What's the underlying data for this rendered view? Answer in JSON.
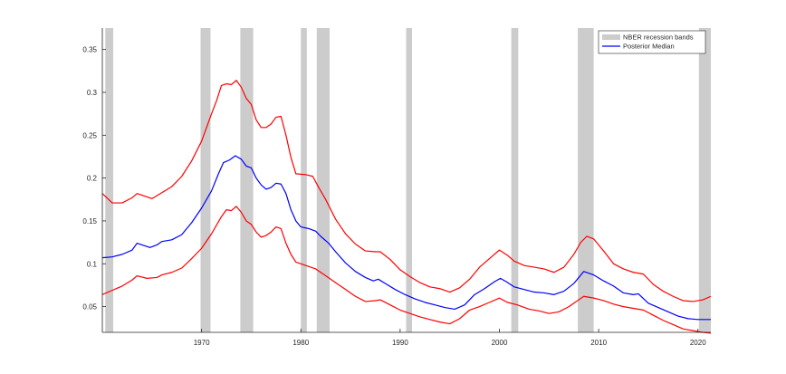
{
  "chart_data": {
    "type": "line",
    "title": "",
    "xlabel": "",
    "ylabel": "",
    "xlim": [
      1960,
      2021.3
    ],
    "ylim": [
      0.02,
      0.375
    ],
    "grid": false,
    "legend_placement": "top-right",
    "x_ticks": [
      1970,
      1980,
      1990,
      2000,
      2010,
      2020
    ],
    "x_tick_labels": [
      "1970",
      "1980",
      "1990",
      "2000",
      "2010",
      "2020"
    ],
    "y_ticks": [
      0.05,
      0.1,
      0.15,
      0.2,
      0.25,
      0.3,
      0.35
    ],
    "y_tick_labels": [
      "0.05",
      "0.1",
      "0.15",
      "0.2",
      "0.25",
      "0.3",
      "0.35"
    ],
    "recession_bands": [
      [
        1960.3,
        1961.1
      ],
      [
        1969.9,
        1970.9
      ],
      [
        1973.9,
        1975.2
      ],
      [
        1980.0,
        1980.6
      ],
      [
        1981.6,
        1982.9
      ],
      [
        1990.6,
        1991.2
      ],
      [
        2001.2,
        2001.9
      ],
      [
        2007.9,
        2009.5
      ],
      [
        2020.1,
        2021.3
      ]
    ],
    "legend": [
      {
        "label": "NBER recession bands",
        "kind": "band",
        "color": "#cccccc"
      },
      {
        "label": "Posterior Median",
        "kind": "line",
        "color": "#0000ff"
      }
    ],
    "series": [
      {
        "name": "Posterior Median",
        "color": "#0000ff",
        "points": [
          [
            1960,
            0.107
          ],
          [
            1961,
            0.108
          ],
          [
            1962,
            0.111
          ],
          [
            1963,
            0.116
          ],
          [
            1963.5,
            0.124
          ],
          [
            1964,
            0.122
          ],
          [
            1964.8,
            0.119
          ],
          [
            1965.5,
            0.122
          ],
          [
            1966,
            0.126
          ],
          [
            1967,
            0.128
          ],
          [
            1968,
            0.134
          ],
          [
            1969,
            0.148
          ],
          [
            1970,
            0.165
          ],
          [
            1971,
            0.185
          ],
          [
            1971.7,
            0.205
          ],
          [
            1972.2,
            0.218
          ],
          [
            1972.8,
            0.221
          ],
          [
            1973.4,
            0.226
          ],
          [
            1974,
            0.222
          ],
          [
            1974.5,
            0.214
          ],
          [
            1975,
            0.212
          ],
          [
            1975.5,
            0.2
          ],
          [
            1976,
            0.192
          ],
          [
            1976.5,
            0.187
          ],
          [
            1977,
            0.189
          ],
          [
            1977.5,
            0.194
          ],
          [
            1978,
            0.193
          ],
          [
            1978.5,
            0.182
          ],
          [
            1979,
            0.163
          ],
          [
            1979.5,
            0.15
          ],
          [
            1980,
            0.143
          ],
          [
            1980.8,
            0.141
          ],
          [
            1981.5,
            0.138
          ],
          [
            1982,
            0.132
          ],
          [
            1982.8,
            0.124
          ],
          [
            1983.5,
            0.114
          ],
          [
            1984.5,
            0.101
          ],
          [
            1985.5,
            0.091
          ],
          [
            1986.5,
            0.084
          ],
          [
            1987.3,
            0.08
          ],
          [
            1987.8,
            0.082
          ],
          [
            1988.5,
            0.077
          ],
          [
            1989.5,
            0.07
          ],
          [
            1990.5,
            0.064
          ],
          [
            1991.5,
            0.059
          ],
          [
            1992.5,
            0.055
          ],
          [
            1993.5,
            0.052
          ],
          [
            1994.5,
            0.049
          ],
          [
            1995.5,
            0.047
          ],
          [
            1996.5,
            0.052
          ],
          [
            1997.5,
            0.064
          ],
          [
            1998.5,
            0.071
          ],
          [
            1999.5,
            0.079
          ],
          [
            2000.1,
            0.083
          ],
          [
            2000.7,
            0.079
          ],
          [
            2001.5,
            0.073
          ],
          [
            2002.5,
            0.07
          ],
          [
            2003.5,
            0.067
          ],
          [
            2004.5,
            0.066
          ],
          [
            2005.5,
            0.064
          ],
          [
            2006.5,
            0.068
          ],
          [
            2007.5,
            0.077
          ],
          [
            2008.5,
            0.091
          ],
          [
            2009.5,
            0.087
          ],
          [
            2010.5,
            0.08
          ],
          [
            2011.5,
            0.074
          ],
          [
            2012.5,
            0.066
          ],
          [
            2013.5,
            0.064
          ],
          [
            2014,
            0.065
          ],
          [
            2015,
            0.054
          ],
          [
            2016,
            0.049
          ],
          [
            2017,
            0.044
          ],
          [
            2018,
            0.039
          ],
          [
            2019,
            0.036
          ],
          [
            2020,
            0.035
          ],
          [
            2021.3,
            0.035
          ]
        ]
      },
      {
        "name": "",
        "color": "#ff0000",
        "points": [
          [
            1960,
            0.182
          ],
          [
            1961,
            0.171
          ],
          [
            1962,
            0.171
          ],
          [
            1963,
            0.177
          ],
          [
            1963.5,
            0.182
          ],
          [
            1964,
            0.18
          ],
          [
            1965,
            0.176
          ],
          [
            1966,
            0.183
          ],
          [
            1967,
            0.19
          ],
          [
            1968,
            0.202
          ],
          [
            1969,
            0.22
          ],
          [
            1970,
            0.243
          ],
          [
            1971,
            0.275
          ],
          [
            1971.5,
            0.29
          ],
          [
            1972,
            0.308
          ],
          [
            1972.5,
            0.31
          ],
          [
            1973,
            0.309
          ],
          [
            1973.5,
            0.314
          ],
          [
            1974,
            0.306
          ],
          [
            1974.5,
            0.293
          ],
          [
            1975,
            0.286
          ],
          [
            1975.5,
            0.268
          ],
          [
            1976,
            0.259
          ],
          [
            1976.5,
            0.259
          ],
          [
            1977,
            0.263
          ],
          [
            1977.5,
            0.271
          ],
          [
            1978,
            0.272
          ],
          [
            1978.5,
            0.25
          ],
          [
            1979,
            0.224
          ],
          [
            1979.5,
            0.205
          ],
          [
            1980.5,
            0.204
          ],
          [
            1981.2,
            0.202
          ],
          [
            1981.8,
            0.189
          ],
          [
            1982.5,
            0.175
          ],
          [
            1983.5,
            0.152
          ],
          [
            1984.5,
            0.135
          ],
          [
            1985.5,
            0.123
          ],
          [
            1986.5,
            0.115
          ],
          [
            1987.5,
            0.114
          ],
          [
            1988,
            0.114
          ],
          [
            1989,
            0.105
          ],
          [
            1990,
            0.093
          ],
          [
            1991,
            0.085
          ],
          [
            1992,
            0.078
          ],
          [
            1993,
            0.073
          ],
          [
            1994,
            0.071
          ],
          [
            1995,
            0.067
          ],
          [
            1996,
            0.072
          ],
          [
            1997,
            0.082
          ],
          [
            1998,
            0.096
          ],
          [
            1999,
            0.106
          ],
          [
            2000,
            0.116
          ],
          [
            2000.8,
            0.11
          ],
          [
            2001.5,
            0.103
          ],
          [
            2002.5,
            0.098
          ],
          [
            2003.5,
            0.096
          ],
          [
            2004.5,
            0.094
          ],
          [
            2005.5,
            0.09
          ],
          [
            2006.5,
            0.096
          ],
          [
            2007.5,
            0.111
          ],
          [
            2008.2,
            0.125
          ],
          [
            2008.8,
            0.132
          ],
          [
            2009.5,
            0.129
          ],
          [
            2010.5,
            0.115
          ],
          [
            2011.5,
            0.1
          ],
          [
            2012.5,
            0.094
          ],
          [
            2013.5,
            0.09
          ],
          [
            2014.5,
            0.088
          ],
          [
            2015.5,
            0.076
          ],
          [
            2016.5,
            0.068
          ],
          [
            2017.5,
            0.062
          ],
          [
            2018.5,
            0.057
          ],
          [
            2019.5,
            0.056
          ],
          [
            2020.5,
            0.058
          ],
          [
            2021.3,
            0.062
          ]
        ]
      },
      {
        "name": "",
        "color": "#ff0000",
        "points": [
          [
            1960,
            0.064
          ],
          [
            1961,
            0.069
          ],
          [
            1962,
            0.074
          ],
          [
            1963,
            0.081
          ],
          [
            1963.5,
            0.086
          ],
          [
            1964.5,
            0.083
          ],
          [
            1965.5,
            0.084
          ],
          [
            1966,
            0.087
          ],
          [
            1967,
            0.09
          ],
          [
            1968,
            0.095
          ],
          [
            1969,
            0.106
          ],
          [
            1970,
            0.118
          ],
          [
            1971,
            0.135
          ],
          [
            1972,
            0.155
          ],
          [
            1972.5,
            0.163
          ],
          [
            1973,
            0.162
          ],
          [
            1973.5,
            0.167
          ],
          [
            1974,
            0.16
          ],
          [
            1974.5,
            0.15
          ],
          [
            1975,
            0.146
          ],
          [
            1975.5,
            0.137
          ],
          [
            1976,
            0.131
          ],
          [
            1976.5,
            0.133
          ],
          [
            1977,
            0.137
          ],
          [
            1977.5,
            0.143
          ],
          [
            1978,
            0.141
          ],
          [
            1978.5,
            0.124
          ],
          [
            1979,
            0.111
          ],
          [
            1979.5,
            0.102
          ],
          [
            1980.5,
            0.098
          ],
          [
            1981.5,
            0.094
          ],
          [
            1982.5,
            0.086
          ],
          [
            1983.5,
            0.078
          ],
          [
            1984.5,
            0.07
          ],
          [
            1985.5,
            0.062
          ],
          [
            1986.5,
            0.056
          ],
          [
            1987.5,
            0.057
          ],
          [
            1988,
            0.058
          ],
          [
            1989,
            0.052
          ],
          [
            1990,
            0.046
          ],
          [
            1991,
            0.042
          ],
          [
            1992,
            0.038
          ],
          [
            1993,
            0.035
          ],
          [
            1994,
            0.032
          ],
          [
            1995,
            0.03
          ],
          [
            1996,
            0.036
          ],
          [
            1997,
            0.046
          ],
          [
            1998,
            0.05
          ],
          [
            1999,
            0.055
          ],
          [
            2000,
            0.06
          ],
          [
            2000.8,
            0.055
          ],
          [
            2001.8,
            0.052
          ],
          [
            2003,
            0.047
          ],
          [
            2004,
            0.045
          ],
          [
            2005,
            0.042
          ],
          [
            2006,
            0.044
          ],
          [
            2007,
            0.05
          ],
          [
            2008.5,
            0.062
          ],
          [
            2009.5,
            0.06
          ],
          [
            2010.5,
            0.057
          ],
          [
            2011.5,
            0.053
          ],
          [
            2012.5,
            0.05
          ],
          [
            2013.5,
            0.048
          ],
          [
            2014.5,
            0.046
          ],
          [
            2015.5,
            0.04
          ],
          [
            2016.5,
            0.034
          ],
          [
            2017.5,
            0.029
          ],
          [
            2018.5,
            0.024
          ],
          [
            2019.5,
            0.022
          ],
          [
            2020.5,
            0.02
          ],
          [
            2021.3,
            0.019
          ]
        ]
      }
    ]
  }
}
